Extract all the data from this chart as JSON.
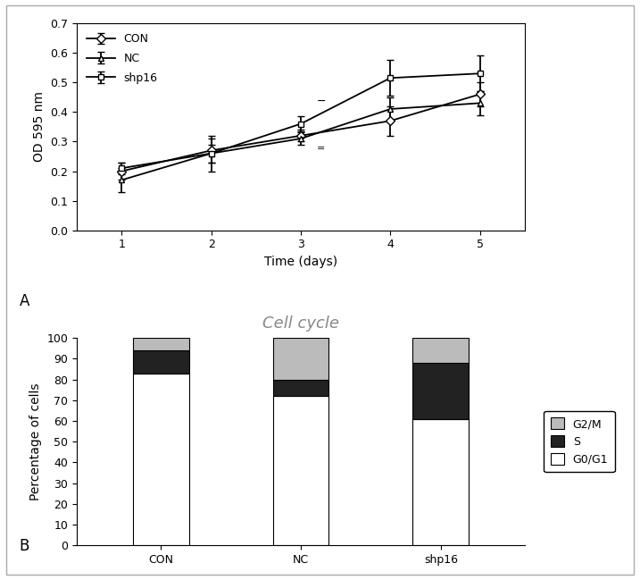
{
  "line_chart": {
    "days": [
      1,
      2,
      3,
      4,
      5
    ],
    "CON": {
      "y": [
        0.2,
        0.27,
        0.32,
        0.37,
        0.46
      ],
      "yerr": [
        0.03,
        0.04,
        0.02,
        0.05,
        0.04
      ]
    },
    "NC": {
      "y": [
        0.17,
        0.26,
        0.31,
        0.41,
        0.43
      ],
      "yerr": [
        0.04,
        0.06,
        0.02,
        0.04,
        0.04
      ]
    },
    "shp16": {
      "y": [
        0.21,
        0.26,
        0.36,
        0.515,
        0.53
      ],
      "yerr": [
        0.02,
        0.03,
        0.025,
        0.06,
        0.06
      ]
    },
    "ylabel": "OD 595 nm",
    "xlabel": "Time (days)",
    "ylim": [
      0.0,
      0.7
    ],
    "yticks": [
      0.0,
      0.1,
      0.2,
      0.3,
      0.4,
      0.5,
      0.6,
      0.7
    ]
  },
  "bar_chart": {
    "groups": [
      "CON",
      "NC",
      "shp16"
    ],
    "G0G1": [
      83,
      72,
      61
    ],
    "S": [
      11,
      8,
      27
    ],
    "G2M": [
      6,
      20,
      12
    ],
    "colors": {
      "G0G1": "#ffffff",
      "S": "#222222",
      "G2M": "#bbbbbb"
    },
    "title": "Cell cycle",
    "ylabel": "Percentage of cells",
    "ylim": [
      0,
      100
    ],
    "yticks": [
      0,
      10,
      20,
      30,
      40,
      50,
      60,
      70,
      80,
      90,
      100
    ],
    "legend_labels": [
      "G2/M",
      "S",
      "G0/G1"
    ]
  },
  "label_A": "A",
  "label_B": "B"
}
